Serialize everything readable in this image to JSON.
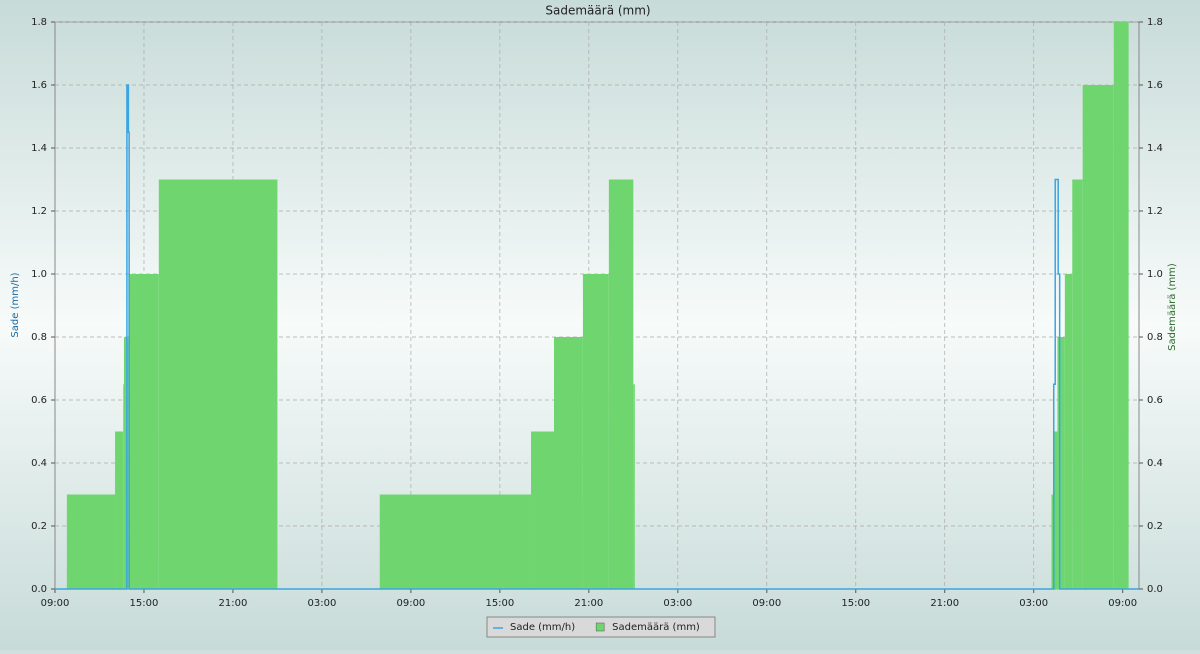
{
  "chart_data": {
    "type": "step",
    "title": "Sademäärä (mm)",
    "y_label": "Sade (mm/h)",
    "y2_label": "Sademäärä (mm)",
    "xlim": [
      0,
      73.1
    ],
    "xticks": [
      {
        "value": 0,
        "label": "09:00"
      },
      {
        "value": 6,
        "label": "15:00"
      },
      {
        "value": 12,
        "label": "21:00"
      },
      {
        "value": 18,
        "label": "03:00"
      },
      {
        "value": 24,
        "label": "09:00"
      },
      {
        "value": 30,
        "label": "15:00"
      },
      {
        "value": 36,
        "label": "21:00"
      },
      {
        "value": 42,
        "label": "03:00"
      },
      {
        "value": 48,
        "label": "09:00"
      },
      {
        "value": 54,
        "label": "15:00"
      },
      {
        "value": 60,
        "label": "21:00"
      },
      {
        "value": 66,
        "label": "03:00"
      },
      {
        "value": 72,
        "label": "09:00"
      }
    ],
    "ylim": [
      0,
      1.8
    ],
    "yticks": [
      {
        "value": 0,
        "label": "0.0"
      },
      0.2,
      0.4,
      0.6,
      0.8,
      {
        "value": 1,
        "label": "1.0"
      },
      1.2,
      1.4,
      1.6,
      1.8
    ],
    "y2lim": [
      0,
      1.8
    ],
    "y2ticks": [
      {
        "value": 0,
        "label": "0.0"
      },
      0.2,
      0.4,
      0.6,
      0.8,
      {
        "value": 1,
        "label": "1.0"
      },
      1.2,
      1.4,
      1.6,
      1.8
    ],
    "grid": true,
    "legend": "bottom",
    "series": [
      {
        "name": "Sademäärä (mm)",
        "type": "step-area",
        "axis": "y2",
        "color": "#6fd66f",
        "x": [
          0.8,
          4.05,
          4.6,
          4.65,
          4.95,
          7.0,
          15.0,
          21.9,
          32.1,
          33.65,
          35.6,
          37.35,
          39.0,
          39.1,
          67.2,
          67.35,
          67.6,
          68.1,
          68.6,
          69.3,
          71.4,
          72.4
        ],
        "values": [
          0.3,
          0.5,
          0.65,
          0.8,
          1.0,
          1.3,
          0,
          0.3,
          0.5,
          0.8,
          1.0,
          1.3,
          0.65,
          0,
          0.3,
          0.5,
          0.8,
          1.0,
          1.3,
          1.6,
          1.8,
          0
        ]
      },
      {
        "name": "Sade (mm/h)",
        "type": "line",
        "color": "#3aa6e0",
        "x": [
          0,
          4.85,
          4.85,
          4.95,
          4.95,
          5.0,
          5.0,
          67.35,
          67.35,
          67.45,
          67.45,
          67.65,
          67.65,
          67.75,
          67.75,
          73.1
        ],
        "values": [
          0,
          0,
          1.6,
          1.6,
          1.45,
          1.45,
          0,
          0,
          0.65,
          0.65,
          1.3,
          1.3,
          1.0,
          1.0,
          0,
          0
        ]
      }
    ]
  }
}
